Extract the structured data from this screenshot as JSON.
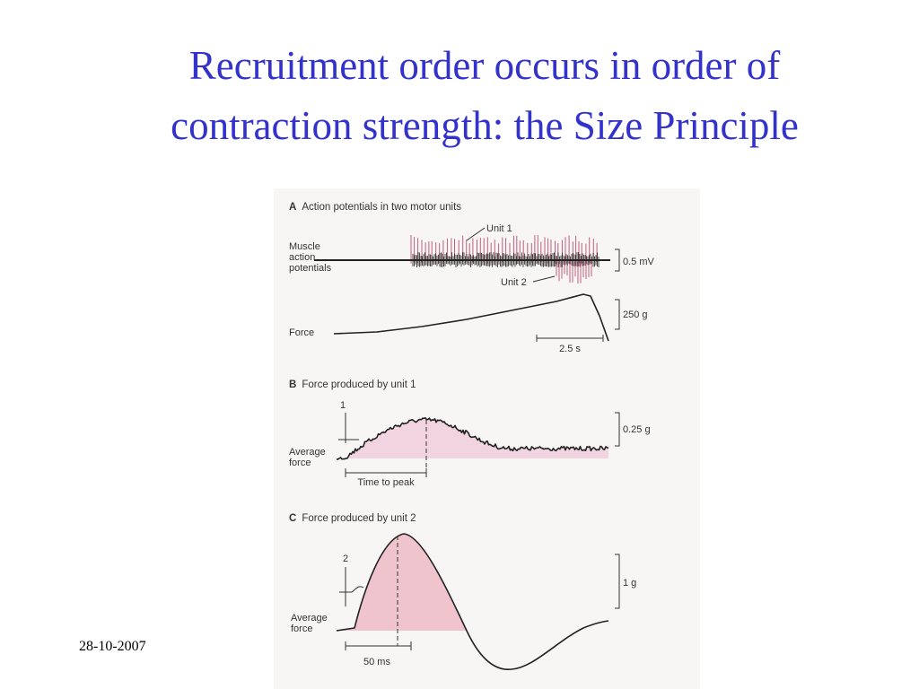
{
  "slide": {
    "title_lines": [
      "Recruitment order occurs in order of",
      "contraction strength: the Size Principle"
    ],
    "date": "28-10-2007"
  },
  "figure": {
    "panel_a": {
      "letter": "A",
      "heading": "Action potentials in two motor units",
      "unit_1": "Unit 1",
      "unit_2": "Unit 2",
      "trace_label_lines": [
        "Muscle",
        "action",
        "potentials"
      ],
      "force_label": "Force",
      "scale_voltage": "0.5 mV",
      "scale_force": "250 g",
      "scale_time": "2.5 s"
    },
    "panel_b": {
      "letter": "B",
      "heading": "Force produced by unit 1",
      "stimulus": "1",
      "trace_label_lines": [
        "Average",
        "force"
      ],
      "scale_force": "0.25 g",
      "time_label": "Time to peak"
    },
    "panel_c": {
      "letter": "C",
      "heading": "Force produced by unit 2",
      "stimulus": "2",
      "trace_label_lines": [
        "Average",
        "force"
      ],
      "scale_force": "1 g",
      "time_label": "50 ms"
    }
  }
}
